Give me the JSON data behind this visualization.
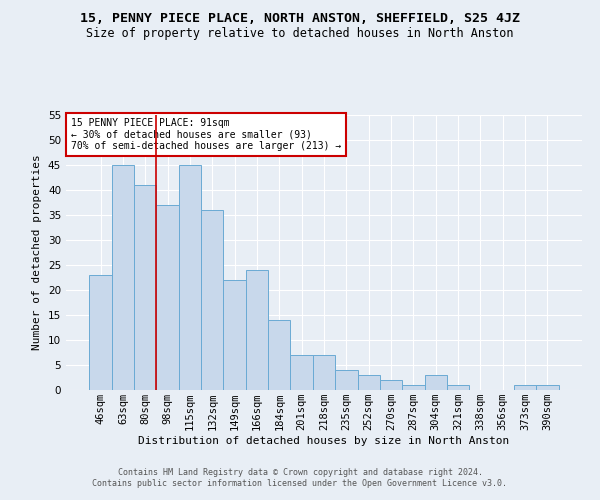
{
  "title": "15, PENNY PIECE PLACE, NORTH ANSTON, SHEFFIELD, S25 4JZ",
  "subtitle": "Size of property relative to detached houses in North Anston",
  "xlabel": "Distribution of detached houses by size in North Anston",
  "ylabel": "Number of detached properties",
  "footer_line1": "Contains HM Land Registry data © Crown copyright and database right 2024.",
  "footer_line2": "Contains public sector information licensed under the Open Government Licence v3.0.",
  "categories": [
    "46sqm",
    "63sqm",
    "80sqm",
    "98sqm",
    "115sqm",
    "132sqm",
    "149sqm",
    "166sqm",
    "184sqm",
    "201sqm",
    "218sqm",
    "235sqm",
    "252sqm",
    "270sqm",
    "287sqm",
    "304sqm",
    "321sqm",
    "338sqm",
    "356sqm",
    "373sqm",
    "390sqm"
  ],
  "values": [
    23,
    45,
    41,
    37,
    45,
    36,
    22,
    24,
    14,
    7,
    7,
    4,
    3,
    2,
    1,
    3,
    1,
    0,
    0,
    1,
    1
  ],
  "bar_color": "#c8d8eb",
  "bar_edge_color": "#6aaad4",
  "property_line_x": 2.5,
  "property_line_color": "#cc0000",
  "annotation_text": "15 PENNY PIECE PLACE: 91sqm\n← 30% of detached houses are smaller (93)\n70% of semi-detached houses are larger (213) →",
  "annotation_box_color": "#cc0000",
  "ylim": [
    0,
    55
  ],
  "yticks": [
    0,
    5,
    10,
    15,
    20,
    25,
    30,
    35,
    40,
    45,
    50,
    55
  ],
  "background_color": "#e8eef5",
  "grid_color": "#ffffff",
  "title_fontsize": 9.5,
  "subtitle_fontsize": 8.5,
  "ylabel_fontsize": 8,
  "xlabel_fontsize": 8,
  "tick_fontsize": 7.5,
  "annotation_fontsize": 7,
  "footer_fontsize": 6
}
